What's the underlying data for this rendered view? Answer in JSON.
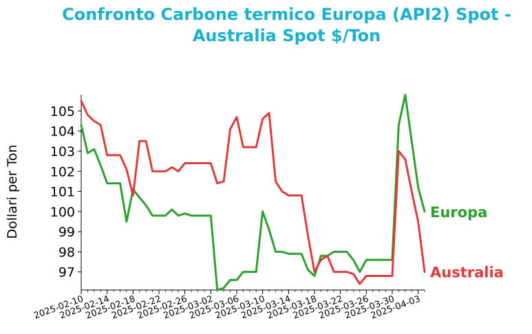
{
  "title_lines": [
    "Confronto Carbone termico Europa (API2) Spot -",
    "Australia Spot $/Ton"
  ],
  "chart_data": {
    "type": "line",
    "title": "Confronto Carbone termico Europa (API2) Spot - Australia Spot $/Ton",
    "xlabel": "",
    "ylabel": "Dollari per Ton",
    "xlim": [
      "2025-02-10",
      "2025-04-04"
    ],
    "ylim": [
      96.1,
      105.8
    ],
    "x_ticks": [
      "2025-02-10",
      "2025-02-14",
      "2025-02-18",
      "2025-02-22",
      "2025-02-26",
      "2025-03-02",
      "2025-03-06",
      "2025-03-10",
      "2025-03-14",
      "2025-03-18",
      "2025-03-22",
      "2025-03-26",
      "2025-03-30",
      "2025-04-03"
    ],
    "y_ticks": [
      97,
      98,
      99,
      100,
      101,
      102,
      103,
      104,
      105
    ],
    "grid": false,
    "legend": "direct labels at line ends",
    "series": [
      {
        "name": "Europa",
        "color": "#2ca02c",
        "points": [
          [
            "2025-02-10",
            104.3
          ],
          [
            "2025-02-11",
            102.9
          ],
          [
            "2025-02-12",
            103.1
          ],
          [
            "2025-02-13",
            102.3
          ],
          [
            "2025-02-14",
            101.4
          ],
          [
            "2025-02-15",
            101.4
          ],
          [
            "2025-02-16",
            101.4
          ],
          [
            "2025-02-17",
            99.5
          ],
          [
            "2025-02-18",
            101.1
          ],
          [
            "2025-02-19",
            100.7
          ],
          [
            "2025-02-20",
            100.3
          ],
          [
            "2025-02-21",
            99.8
          ],
          [
            "2025-02-22",
            99.8
          ],
          [
            "2025-02-23",
            99.8
          ],
          [
            "2025-02-24",
            100.1
          ],
          [
            "2025-02-25",
            99.8
          ],
          [
            "2025-02-26",
            99.9
          ],
          [
            "2025-02-27",
            99.8
          ],
          [
            "2025-02-28",
            99.8
          ],
          [
            "2025-03-01",
            99.8
          ],
          [
            "2025-03-02",
            99.8
          ],
          [
            "2025-03-03",
            96.1
          ],
          [
            "2025-03-04",
            96.2
          ],
          [
            "2025-03-05",
            96.6
          ],
          [
            "2025-03-06",
            96.6
          ],
          [
            "2025-03-07",
            97.0
          ],
          [
            "2025-03-08",
            97.0
          ],
          [
            "2025-03-09",
            97.0
          ],
          [
            "2025-03-10",
            100.0
          ],
          [
            "2025-03-11",
            99.1
          ],
          [
            "2025-03-12",
            98.0
          ],
          [
            "2025-03-13",
            98.0
          ],
          [
            "2025-03-14",
            97.9
          ],
          [
            "2025-03-15",
            97.9
          ],
          [
            "2025-03-16",
            97.9
          ],
          [
            "2025-03-17",
            97.1
          ],
          [
            "2025-03-18",
            96.8
          ],
          [
            "2025-03-19",
            97.8
          ],
          [
            "2025-03-20",
            97.8
          ],
          [
            "2025-03-21",
            98.0
          ],
          [
            "2025-03-22",
            98.0
          ],
          [
            "2025-03-23",
            98.0
          ],
          [
            "2025-03-24",
            97.6
          ],
          [
            "2025-03-25",
            97.0
          ],
          [
            "2025-03-26",
            97.6
          ],
          [
            "2025-03-27",
            97.6
          ],
          [
            "2025-03-28",
            97.6
          ],
          [
            "2025-03-29",
            97.6
          ],
          [
            "2025-03-30",
            97.6
          ],
          [
            "2025-03-31",
            104.3
          ],
          [
            "2025-04-01",
            105.8
          ],
          [
            "2025-04-02",
            103.5
          ],
          [
            "2025-04-03",
            101.2
          ],
          [
            "2025-04-04",
            100.0
          ]
        ]
      },
      {
        "name": "Australia",
        "color": "#e03a3a",
        "points": [
          [
            "2025-02-10",
            105.5
          ],
          [
            "2025-02-11",
            104.8
          ],
          [
            "2025-02-12",
            104.5
          ],
          [
            "2025-02-13",
            104.3
          ],
          [
            "2025-02-14",
            102.8
          ],
          [
            "2025-02-15",
            102.8
          ],
          [
            "2025-02-16",
            102.8
          ],
          [
            "2025-02-17",
            102.1
          ],
          [
            "2025-02-18",
            100.8
          ],
          [
            "2025-02-19",
            103.5
          ],
          [
            "2025-02-20",
            103.5
          ],
          [
            "2025-02-21",
            102.0
          ],
          [
            "2025-02-22",
            102.0
          ],
          [
            "2025-02-23",
            102.0
          ],
          [
            "2025-02-24",
            102.2
          ],
          [
            "2025-02-25",
            102.0
          ],
          [
            "2025-02-26",
            102.4
          ],
          [
            "2025-02-27",
            102.4
          ],
          [
            "2025-02-28",
            102.4
          ],
          [
            "2025-03-01",
            102.4
          ],
          [
            "2025-03-02",
            102.4
          ],
          [
            "2025-03-03",
            101.4
          ],
          [
            "2025-03-04",
            101.5
          ],
          [
            "2025-03-05",
            104.1
          ],
          [
            "2025-03-06",
            104.7
          ],
          [
            "2025-03-07",
            103.2
          ],
          [
            "2025-03-08",
            103.2
          ],
          [
            "2025-03-09",
            103.2
          ],
          [
            "2025-03-10",
            104.6
          ],
          [
            "2025-03-11",
            104.9
          ],
          [
            "2025-03-12",
            101.5
          ],
          [
            "2025-03-13",
            101.0
          ],
          [
            "2025-03-14",
            100.8
          ],
          [
            "2025-03-15",
            100.8
          ],
          [
            "2025-03-16",
            100.8
          ],
          [
            "2025-03-17",
            98.8
          ],
          [
            "2025-03-18",
            97.0
          ],
          [
            "2025-03-19",
            97.6
          ],
          [
            "2025-03-20",
            97.8
          ],
          [
            "2025-03-21",
            97.0
          ],
          [
            "2025-03-22",
            97.0
          ],
          [
            "2025-03-23",
            97.0
          ],
          [
            "2025-03-24",
            96.9
          ],
          [
            "2025-03-25",
            96.4
          ],
          [
            "2025-03-26",
            96.8
          ],
          [
            "2025-03-27",
            96.8
          ],
          [
            "2025-03-28",
            96.8
          ],
          [
            "2025-03-29",
            96.8
          ],
          [
            "2025-03-30",
            96.8
          ],
          [
            "2025-03-31",
            103.0
          ],
          [
            "2025-04-01",
            102.6
          ],
          [
            "2025-04-02",
            101.0
          ],
          [
            "2025-04-03",
            99.5
          ],
          [
            "2025-04-04",
            97.0
          ]
        ]
      }
    ]
  }
}
